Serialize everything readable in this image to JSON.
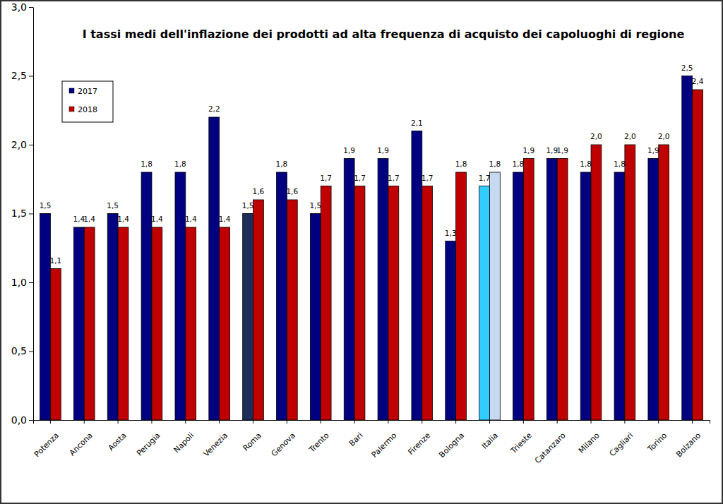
{
  "chart_data": {
    "type": "bar",
    "title": "I tassi medi dell'inflazione dei prodotti ad alta frequenza di acquisto dei capoluoghi di regione",
    "categories": [
      "Potenza",
      "Ancona",
      "Aosta",
      "Perugia",
      "Napoli",
      "Venezia",
      "Roma",
      "Genova",
      "Trento",
      "Bari",
      "Palermo",
      "Firenze",
      "Bologna",
      "Italia",
      "Trieste",
      "Catanzaro",
      "Milano",
      "Cagliari",
      "Torino",
      "Bolzano"
    ],
    "series": [
      {
        "name": "2017",
        "color": "#000080",
        "colors": [
          "#000080",
          "#000080",
          "#000080",
          "#000080",
          "#000080",
          "#000080",
          "#1c2e5a",
          "#000080",
          "#000080",
          "#000080",
          "#000080",
          "#000080",
          "#000080",
          "#33ccff",
          "#000080",
          "#000080",
          "#000080",
          "#000080",
          "#000080",
          "#000080"
        ],
        "values": [
          1.5,
          1.4,
          1.5,
          1.8,
          1.8,
          2.2,
          1.5,
          1.8,
          1.5,
          1.9,
          1.9,
          2.1,
          1.3,
          1.7,
          1.8,
          1.9,
          1.8,
          1.8,
          1.9,
          2.5
        ],
        "value_labels": [
          "1,5",
          "1,4",
          "1,5",
          "1,8",
          "1,8",
          "2,2",
          "1,5",
          "1,8",
          "1,5",
          "1,9",
          "1,9",
          "2,1",
          "1,3",
          "1,7",
          "1,8",
          "1,9",
          "1,8",
          "1,8",
          "1,9",
          "2,5"
        ]
      },
      {
        "name": "2018",
        "color": "#c00000",
        "colors": [
          "#c00000",
          "#c00000",
          "#c00000",
          "#c00000",
          "#c00000",
          "#c00000",
          "#c00000",
          "#c00000",
          "#c00000",
          "#c00000",
          "#c00000",
          "#c00000",
          "#c00000",
          "#c6d9f1",
          "#c00000",
          "#c00000",
          "#c00000",
          "#c00000",
          "#c00000",
          "#c00000"
        ],
        "values": [
          1.1,
          1.4,
          1.4,
          1.4,
          1.4,
          1.4,
          1.6,
          1.6,
          1.7,
          1.7,
          1.7,
          1.7,
          1.8,
          1.8,
          1.9,
          1.9,
          2.0,
          2.0,
          2.0,
          2.4
        ],
        "value_labels": [
          "1,1",
          "1,4",
          "1,4",
          "1,4",
          "1,4",
          "1,4",
          "1,6",
          "1,6",
          "1,7",
          "1,7",
          "1,7",
          "1,7",
          "1,8",
          "1,8",
          "1,9",
          "1,9",
          "2,0",
          "2,0",
          "2,0",
          "2,4"
        ]
      }
    ],
    "ylim": [
      0,
      3
    ],
    "yticks": [
      {
        "value": 0,
        "label": "0,0"
      },
      {
        "value": 0.5,
        "label": "0,5"
      },
      {
        "value": 1,
        "label": "1,0"
      },
      {
        "value": 1.5,
        "label": "1,5"
      },
      {
        "value": 2,
        "label": "2,0"
      },
      {
        "value": 2.5,
        "label": "2,5"
      },
      {
        "value": 3,
        "label": "3,0"
      }
    ],
    "grid": false,
    "legend": "upper left",
    "data_labels": true
  }
}
